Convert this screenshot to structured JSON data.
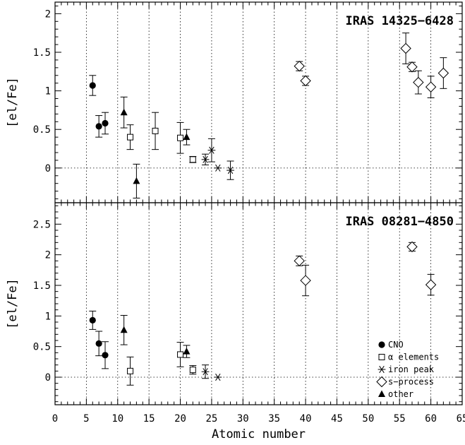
{
  "chart_data": [
    {
      "type": "scatter",
      "title": "IRAS 14325−6428",
      "xlabel": "Atomic number",
      "ylabel": "[el/Fe]",
      "xlim": [
        0,
        65
      ],
      "ylim": [
        -0.45,
        2.15
      ],
      "x_ticks": [
        "0",
        "5",
        "10",
        "15",
        "20",
        "25",
        "30",
        "35",
        "40",
        "45",
        "50",
        "55",
        "60",
        "65"
      ],
      "y_ticks": [
        "0",
        "0.5",
        "1",
        "1.5",
        "2"
      ],
      "y_tick_values": [
        0,
        0.5,
        1,
        1.5,
        2
      ],
      "grid": "vertical dotted every 5; horizontal dotted at y=0",
      "series": [
        {
          "name": "CNO",
          "marker": "filled-circle",
          "points": [
            {
              "x": 6,
              "y": 1.07,
              "err": 0.13
            },
            {
              "x": 7,
              "y": 0.54,
              "err": 0.14
            },
            {
              "x": 8,
              "y": 0.58,
              "err": 0.14
            }
          ]
        },
        {
          "name": "α elements",
          "marker": "open-square",
          "points": [
            {
              "x": 12,
              "y": 0.4,
              "err": 0.16
            },
            {
              "x": 16,
              "y": 0.48,
              "err": 0.24
            },
            {
              "x": 20,
              "y": 0.39,
              "err": 0.2
            },
            {
              "x": 22,
              "y": 0.11,
              "err": 0.04
            }
          ]
        },
        {
          "name": "iron peak",
          "marker": "asterisk",
          "points": [
            {
              "x": 24,
              "y": 0.11,
              "err": 0.07
            },
            {
              "x": 25,
              "y": 0.23,
              "err": 0.15
            },
            {
              "x": 26,
              "y": 0.0,
              "err": 0.0
            },
            {
              "x": 28,
              "y": -0.03,
              "err": 0.12
            }
          ]
        },
        {
          "name": "s−process",
          "marker": "open-diamond",
          "points": [
            {
              "x": 39,
              "y": 1.32,
              "err": 0.06
            },
            {
              "x": 40,
              "y": 1.13,
              "err": 0.06
            },
            {
              "x": 56,
              "y": 1.55,
              "err": 0.2
            },
            {
              "x": 57,
              "y": 1.31,
              "err": 0.06
            },
            {
              "x": 58,
              "y": 1.11,
              "err": 0.15
            },
            {
              "x": 60,
              "y": 1.05,
              "err": 0.14
            },
            {
              "x": 62,
              "y": 1.23,
              "err": 0.2
            }
          ]
        },
        {
          "name": "other",
          "marker": "filled-triangle",
          "points": [
            {
              "x": 11,
              "y": 0.72,
              "err": 0.2
            },
            {
              "x": 13,
              "y": -0.17,
              "err": 0.22
            },
            {
              "x": 21,
              "y": 0.4,
              "err": 0.1
            }
          ]
        }
      ]
    },
    {
      "type": "scatter",
      "title": "IRAS 08281−4850",
      "xlabel": "Atomic number",
      "ylabel": "[el/Fe]",
      "xlim": [
        0,
        65
      ],
      "ylim": [
        -0.45,
        2.85
      ],
      "x_ticks": [
        "0",
        "5",
        "10",
        "15",
        "20",
        "25",
        "30",
        "35",
        "40",
        "45",
        "50",
        "55",
        "60",
        "65"
      ],
      "y_ticks": [
        "0",
        "0.5",
        "1",
        "1.5",
        "2",
        "2.5"
      ],
      "y_tick_values": [
        0,
        0.5,
        1,
        1.5,
        2,
        2.5
      ],
      "grid": "vertical dotted every 5; horizontal dotted at y=0",
      "legend": "bottom-right",
      "series": [
        {
          "name": "CNO",
          "marker": "filled-circle",
          "points": [
            {
              "x": 6,
              "y": 0.93,
              "err": 0.15
            },
            {
              "x": 7,
              "y": 0.55,
              "err": 0.2
            },
            {
              "x": 8,
              "y": 0.36,
              "err": 0.22
            }
          ]
        },
        {
          "name": "α elements",
          "marker": "open-square",
          "points": [
            {
              "x": 12,
              "y": 0.1,
              "err": 0.23
            },
            {
              "x": 20,
              "y": 0.37,
              "err": 0.2
            },
            {
              "x": 22,
              "y": 0.12,
              "err": 0.07
            }
          ]
        },
        {
          "name": "iron peak",
          "marker": "asterisk",
          "points": [
            {
              "x": 24,
              "y": 0.09,
              "err": 0.11
            },
            {
              "x": 26,
              "y": 0.0,
              "err": 0.0
            }
          ]
        },
        {
          "name": "s−process",
          "marker": "open-diamond",
          "points": [
            {
              "x": 39,
              "y": 1.9,
              "err": 0.08
            },
            {
              "x": 40,
              "y": 1.58,
              "err": 0.25
            },
            {
              "x": 57,
              "y": 2.13,
              "err": 0.07
            },
            {
              "x": 60,
              "y": 1.51,
              "err": 0.17
            }
          ]
        },
        {
          "name": "other",
          "marker": "filled-triangle",
          "points": [
            {
              "x": 11,
              "y": 0.77,
              "err": 0.24
            },
            {
              "x": 21,
              "y": 0.42,
              "err": 0.1
            }
          ]
        }
      ]
    }
  ]
}
